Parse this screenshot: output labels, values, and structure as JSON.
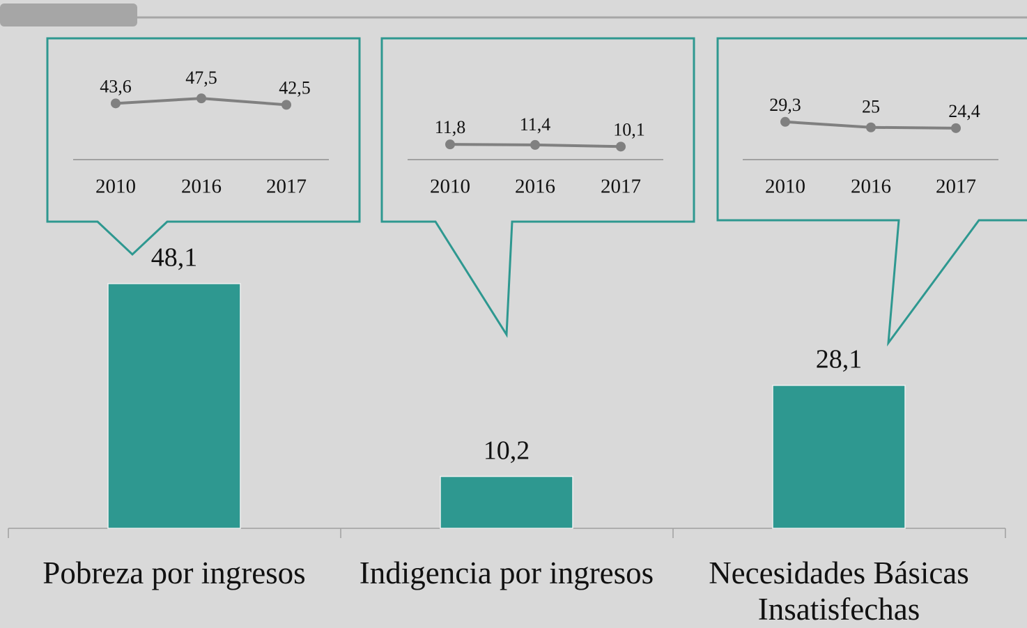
{
  "chart_data": [
    {
      "type": "bar",
      "categories": [
        "Pobreza por ingresos",
        "Indigencia por ingresos",
        "Necesidades Básicas Insatisfechas"
      ],
      "values": [
        48.1,
        10.2,
        28.1
      ],
      "value_labels": [
        "48,1",
        "10,2",
        "28,1"
      ],
      "color": "#2e9890",
      "ylim": [
        0,
        50
      ]
    },
    {
      "type": "line",
      "categories": [
        "2010",
        "2016",
        "2017"
      ],
      "values": [
        43.6,
        47.5,
        42.5
      ],
      "value_labels": [
        "43,6",
        "47,5",
        "42,5"
      ],
      "color": "#808080",
      "ylim": [
        0,
        100
      ]
    },
    {
      "type": "line",
      "categories": [
        "2010",
        "2016",
        "2017"
      ],
      "values": [
        11.8,
        11.4,
        10.1
      ],
      "value_labels": [
        "11,8",
        "11,4",
        "10,1"
      ],
      "color": "#808080",
      "ylim": [
        0,
        100
      ]
    },
    {
      "type": "line",
      "categories": [
        "2010",
        "2016",
        "2017"
      ],
      "values": [
        29.3,
        25,
        24.4
      ],
      "value_labels": [
        "29,3",
        "25",
        "24,4"
      ],
      "color": "#808080",
      "ylim": [
        0,
        100
      ]
    }
  ]
}
